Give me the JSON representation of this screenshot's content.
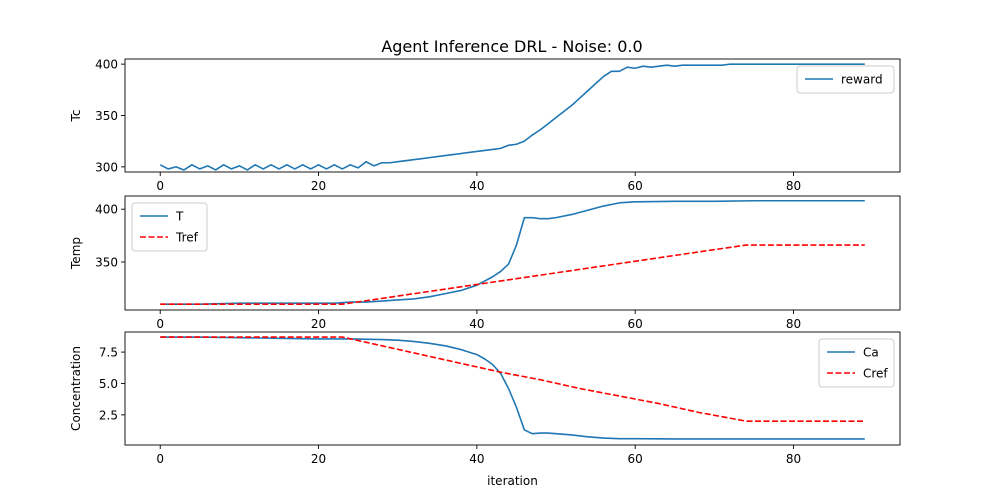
{
  "figure": {
    "title": "Agent Inference DRL - Noise: 0.0"
  },
  "colors": {
    "blue": "#1f77b4",
    "red": "#ff0000"
  },
  "chart_data": [
    {
      "type": "line",
      "title": "Agent Inference DRL - Noise: 0.0",
      "xlabel": "",
      "ylabel": "Tc",
      "xlim": [
        -4.45,
        93.45
      ],
      "ylim": [
        295.0,
        405.0
      ],
      "xticks": [
        0,
        20,
        40,
        60,
        80
      ],
      "yticks": [
        300,
        350,
        400
      ],
      "legend": "upper right",
      "series": [
        {
          "name": "reward",
          "color": "#1f77b4",
          "style": "solid",
          "x": [
            0,
            1,
            2,
            3,
            4,
            5,
            6,
            7,
            8,
            9,
            10,
            11,
            12,
            13,
            14,
            15,
            16,
            17,
            18,
            19,
            20,
            21,
            22,
            23,
            24,
            25,
            26,
            27,
            28,
            29,
            30,
            31,
            32,
            33,
            34,
            35,
            36,
            37,
            38,
            39,
            40,
            41,
            42,
            43,
            44,
            45,
            46,
            47,
            48,
            49,
            50,
            51,
            52,
            53,
            54,
            55,
            56,
            57,
            58,
            59,
            60,
            61,
            62,
            63,
            64,
            65,
            66,
            67,
            68,
            69,
            70,
            71,
            72,
            73,
            74,
            75,
            76,
            77,
            78,
            79,
            80,
            81,
            82,
            83,
            84,
            85,
            86,
            87,
            88,
            89
          ],
          "y": [
            302,
            298,
            300,
            297,
            302,
            298,
            301,
            297,
            302,
            298,
            301,
            297,
            302,
            298,
            302,
            298,
            302,
            298,
            302,
            298,
            302,
            298,
            302,
            298,
            302,
            299,
            305,
            301,
            304,
            304,
            305,
            306,
            307,
            308,
            309,
            310,
            311,
            312,
            313,
            314,
            315,
            316,
            317,
            318,
            321,
            322,
            325,
            331,
            336,
            342,
            348,
            354,
            360,
            367,
            374,
            381,
            388,
            393,
            393,
            397,
            396,
            398,
            397,
            398,
            399,
            398,
            399,
            399,
            399,
            399,
            399,
            399,
            400,
            400,
            400,
            400,
            400,
            400,
            400,
            400,
            400,
            400,
            400,
            400,
            400,
            400,
            400,
            400,
            400,
            400
          ]
        }
      ]
    },
    {
      "type": "line",
      "xlabel": "",
      "ylabel": "Temp",
      "xlim": [
        -4.45,
        93.45
      ],
      "ylim": [
        304.5,
        412.5
      ],
      "xticks": [
        0,
        20,
        40,
        60,
        80
      ],
      "yticks": [
        350,
        400
      ],
      "legend": "upper left",
      "series": [
        {
          "name": "T",
          "color": "#1f77b4",
          "style": "solid",
          "x": [
            0,
            5,
            10,
            15,
            20,
            22,
            24,
            26,
            28,
            30,
            32,
            34,
            36,
            38,
            40,
            42,
            43,
            44,
            45,
            46,
            47,
            48,
            49,
            50,
            52,
            54,
            56,
            58,
            60,
            65,
            70,
            75,
            80,
            85,
            89
          ],
          "y": [
            310,
            310,
            311,
            311,
            311,
            311,
            312,
            312,
            313,
            314,
            315,
            317,
            320,
            323,
            328,
            336,
            341,
            348,
            366,
            392,
            392,
            391,
            391,
            392,
            395,
            399,
            403,
            406,
            407,
            407.5,
            407.5,
            408,
            408,
            408,
            408
          ]
        },
        {
          "name": "Tref",
          "color": "#ff0000",
          "style": "dashed",
          "x": [
            0,
            5,
            10,
            15,
            20,
            23,
            28,
            33,
            38,
            43,
            48,
            53,
            58,
            63,
            68,
            74,
            80,
            85,
            89
          ],
          "y": [
            310,
            310,
            310,
            310,
            310,
            310,
            315.5,
            321,
            326.5,
            332,
            337.5,
            343,
            348.5,
            354,
            359.5,
            366,
            366,
            366,
            366
          ]
        }
      ]
    },
    {
      "type": "line",
      "xlabel": "iteration",
      "ylabel": "Concentration",
      "xlim": [
        -4.45,
        93.45
      ],
      "ylim": [
        0.1,
        9.1
      ],
      "xticks": [
        0,
        20,
        40,
        60,
        80
      ],
      "yticks": [
        2.5,
        5.0,
        7.5
      ],
      "legend": "upper right",
      "series": [
        {
          "name": "Ca",
          "color": "#1f77b4",
          "style": "solid",
          "x": [
            0,
            5,
            10,
            15,
            20,
            24,
            28,
            30,
            32,
            34,
            36,
            38,
            40,
            41,
            42,
            43,
            44,
            45,
            46,
            47,
            48,
            49,
            50,
            52,
            54,
            56,
            58,
            60,
            65,
            70,
            75,
            80,
            85,
            89
          ],
          "y": [
            8.7,
            8.7,
            8.65,
            8.6,
            8.55,
            8.55,
            8.5,
            8.45,
            8.35,
            8.2,
            8.0,
            7.7,
            7.3,
            6.95,
            6.5,
            5.8,
            4.6,
            3.1,
            1.3,
            1.0,
            1.05,
            1.05,
            1.0,
            0.9,
            0.75,
            0.65,
            0.6,
            0.6,
            0.58,
            0.58,
            0.58,
            0.58,
            0.58,
            0.58
          ]
        },
        {
          "name": "Cref",
          "color": "#ff0000",
          "style": "dashed",
          "x": [
            0,
            5,
            10,
            15,
            20,
            23,
            28,
            33,
            38,
            43,
            48,
            53,
            58,
            63,
            68,
            74,
            80,
            85,
            89
          ],
          "y": [
            8.7,
            8.7,
            8.7,
            8.7,
            8.7,
            8.7,
            8.0,
            7.3,
            6.6,
            5.9,
            5.3,
            4.6,
            4.0,
            3.4,
            2.7,
            2.0,
            2.0,
            2.0,
            2.0
          ]
        }
      ]
    }
  ]
}
